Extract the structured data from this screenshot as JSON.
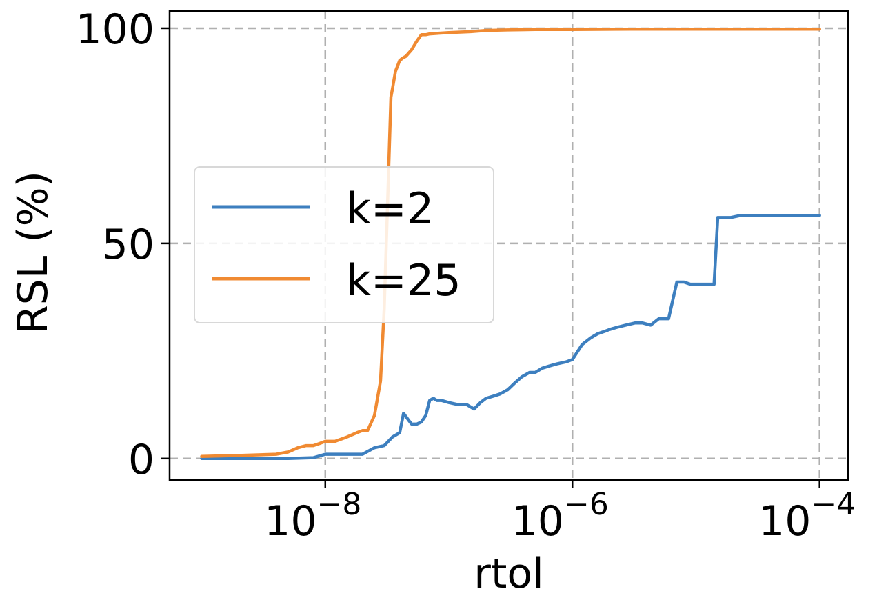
{
  "chart_data": {
    "type": "line",
    "xlabel": "rtol",
    "ylabel": "RSL (%)",
    "xscale": "log",
    "xlim": [
      5.5e-10,
      0.00017
    ],
    "ylim": [
      -5,
      104
    ],
    "x_ticks": [
      {
        "base": "10",
        "exp": "−8",
        "value": 1e-08
      },
      {
        "base": "10",
        "exp": "−6",
        "value": 1e-06
      },
      {
        "base": "10",
        "exp": "−4",
        "value": 0.0001
      }
    ],
    "y_ticks": [
      "0",
      "50",
      "100"
    ],
    "y_tick_values": [
      0,
      50,
      100
    ],
    "grid": true,
    "legend_position": "center-left",
    "series": [
      {
        "name": "k=2",
        "color": "#3d7fbf",
        "x": [
          1e-09,
          2e-09,
          5e-09,
          8e-09,
          1e-08,
          1.5e-08,
          2e-08,
          2.5e-08,
          3e-08,
          3.5e-08,
          4e-08,
          4.3e-08,
          4.7e-08,
          5e-08,
          5.5e-08,
          6e-08,
          6.5e-08,
          7e-08,
          7.5e-08,
          8e-08,
          8.7e-08,
          1e-07,
          1.2e-07,
          1.4e-07,
          1.6e-07,
          1.8e-07,
          2e-07,
          2.3e-07,
          2.6e-07,
          3e-07,
          3.4e-07,
          3.9e-07,
          4.5e-07,
          5e-07,
          5.7e-07,
          6.5e-07,
          7.5e-07,
          9e-07,
          1e-06,
          1.2e-06,
          1.4e-06,
          1.6e-06,
          1.8e-06,
          2e-06,
          2.3e-06,
          2.7e-06,
          3.2e-06,
          3.7e-06,
          4.3e-06,
          5e-06,
          6e-06,
          7e-06,
          8e-06,
          9e-06,
          1e-05,
          1.2e-05,
          1.4e-05,
          1.5e-05,
          1.6e-05,
          1.9e-05,
          2.3e-05,
          3e-05,
          3.2e-05,
          3.5e-05,
          5e-05,
          6e-05,
          0.0001
        ],
        "y": [
          0,
          0,
          0,
          0.2,
          1,
          1,
          1,
          2.5,
          3,
          5,
          6,
          10.5,
          9,
          8,
          8,
          8.5,
          10,
          13.5,
          14,
          13.5,
          13.5,
          13,
          12.5,
          12.5,
          11.5,
          13,
          14,
          14.5,
          15,
          16,
          17.5,
          19,
          20,
          20,
          21,
          21.5,
          22,
          22.5,
          23,
          26.5,
          28,
          29,
          29.5,
          30,
          30.5,
          31,
          31.5,
          31.5,
          31,
          32.5,
          32.5,
          41,
          41,
          40.5,
          40.5,
          40.5,
          40.5,
          56,
          56,
          56,
          56.5,
          56.5,
          56.5,
          56.5,
          56.5,
          56.5,
          56.5
        ]
      },
      {
        "name": "k=25",
        "color": "#f08a32",
        "x": [
          1e-09,
          2e-09,
          4e-09,
          5e-09,
          6e-09,
          7e-09,
          8e-09,
          9e-09,
          1e-08,
          1.2e-08,
          1.5e-08,
          1.8e-08,
          2e-08,
          2.2e-08,
          2.5e-08,
          2.8e-08,
          3e-08,
          3.2e-08,
          3.4e-08,
          3.5e-08,
          3.7e-08,
          4e-08,
          4.2e-08,
          4.5e-08,
          5e-08,
          5.5e-08,
          6e-08,
          6.5e-08,
          7e-08,
          8e-08,
          1e-07,
          1.5e-07,
          2e-07,
          3e-07,
          5e-07,
          1e-06,
          3e-06,
          1e-05,
          3e-05,
          0.0001
        ],
        "y": [
          0.5,
          0.7,
          1,
          1.5,
          2.5,
          3,
          3,
          3.5,
          4,
          4,
          5,
          6,
          6.5,
          6.5,
          10,
          18,
          35,
          60,
          84,
          86,
          90,
          92.5,
          93,
          93.5,
          95,
          97,
          98.5,
          98.5,
          98.7,
          98.8,
          99,
          99.2,
          99.5,
          99.6,
          99.7,
          99.7,
          99.8,
          99.8,
          99.8,
          99.8
        ]
      }
    ]
  }
}
